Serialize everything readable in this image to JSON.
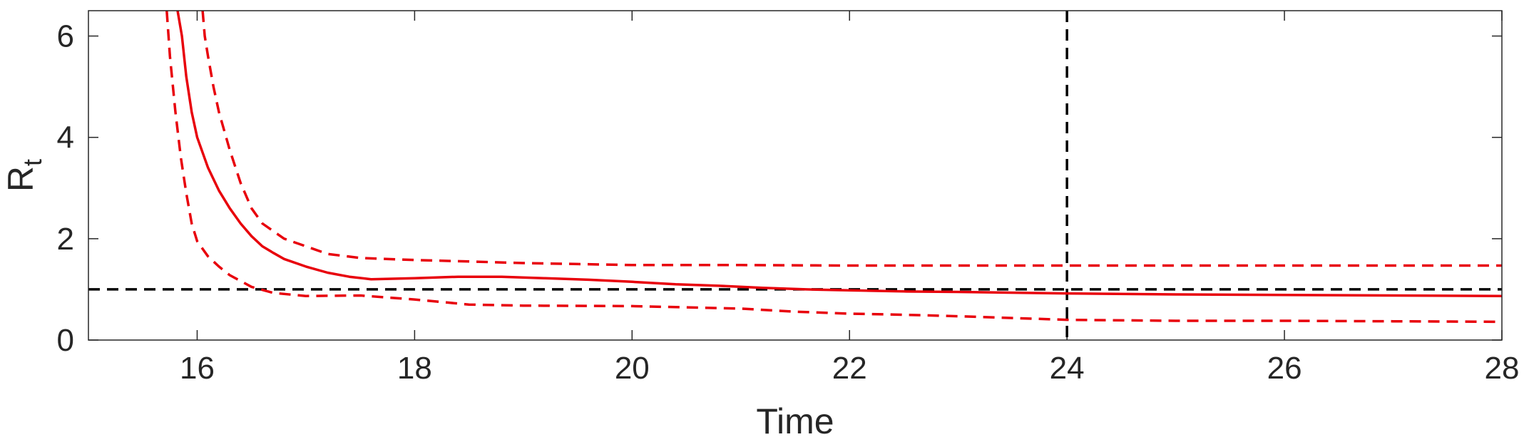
{
  "chart_data": {
    "type": "line",
    "title": "",
    "xlabel": "Time",
    "ylabel": "R",
    "ylabel_subscript": "t",
    "xlim": [
      15,
      28
    ],
    "ylim": [
      0,
      6.5
    ],
    "xticks": [
      16,
      18,
      20,
      22,
      24,
      26,
      28
    ],
    "yticks": [
      0,
      2,
      4,
      6
    ],
    "grid": false,
    "legend": "none",
    "colors": {
      "series": "#e8000b",
      "reference": "#000000",
      "axes": "#262626"
    },
    "series": [
      {
        "style": "solid",
        "x": [
          15.82,
          15.86,
          15.9,
          15.95,
          16.0,
          16.1,
          16.2,
          16.3,
          16.4,
          16.5,
          16.6,
          16.7,
          16.8,
          17.0,
          17.2,
          17.4,
          17.6,
          17.8,
          18.0,
          18.4,
          18.8,
          19.2,
          19.6,
          20.0,
          20.4,
          20.8,
          21.2,
          21.6,
          22.0,
          22.5,
          23.0,
          24.0,
          25.0,
          26.0,
          27.0,
          28.0
        ],
        "y": [
          6.5,
          6.0,
          5.2,
          4.5,
          4.0,
          3.4,
          2.95,
          2.6,
          2.3,
          2.05,
          1.85,
          1.72,
          1.6,
          1.45,
          1.33,
          1.25,
          1.2,
          1.21,
          1.22,
          1.25,
          1.25,
          1.22,
          1.19,
          1.15,
          1.1,
          1.07,
          1.03,
          1.0,
          0.98,
          0.96,
          0.95,
          0.92,
          0.9,
          0.89,
          0.88,
          0.87
        ]
      },
      {
        "style": "dashed",
        "x": [
          16.05,
          16.07,
          16.1,
          16.15,
          16.2,
          16.3,
          16.4,
          16.5,
          16.6,
          16.8,
          17.0,
          17.2,
          17.5,
          18.0,
          18.5,
          19.0,
          19.5,
          20.0,
          21.0,
          22.0,
          23.0,
          24.0,
          25.0,
          26.0,
          27.0,
          28.0
        ],
        "y": [
          6.5,
          6.0,
          5.6,
          5.0,
          4.5,
          3.75,
          3.1,
          2.6,
          2.3,
          2.0,
          1.85,
          1.7,
          1.62,
          1.58,
          1.55,
          1.52,
          1.5,
          1.48,
          1.48,
          1.47,
          1.47,
          1.47,
          1.47,
          1.47,
          1.47,
          1.47
        ]
      },
      {
        "style": "dashed",
        "x": [
          15.72,
          15.75,
          15.8,
          15.85,
          15.9,
          15.95,
          16.0,
          16.1,
          16.2,
          16.3,
          16.5,
          16.7,
          17.0,
          17.5,
          18.0,
          18.5,
          19.0,
          20.0,
          21.0,
          21.5,
          22.0,
          22.5,
          23.0,
          24.0,
          25.0,
          26.0,
          27.0,
          28.0
        ],
        "y": [
          6.5,
          5.6,
          4.5,
          3.6,
          2.9,
          2.3,
          1.95,
          1.65,
          1.45,
          1.28,
          1.05,
          0.93,
          0.87,
          0.88,
          0.8,
          0.7,
          0.68,
          0.67,
          0.62,
          0.56,
          0.52,
          0.5,
          0.47,
          0.4,
          0.38,
          0.38,
          0.37,
          0.36
        ]
      }
    ],
    "reference_lines": [
      {
        "orientation": "horizontal",
        "value": 1,
        "style": "dashed",
        "color": "#000000"
      },
      {
        "orientation": "vertical",
        "value": 24,
        "style": "dashed",
        "color": "#000000"
      }
    ]
  }
}
